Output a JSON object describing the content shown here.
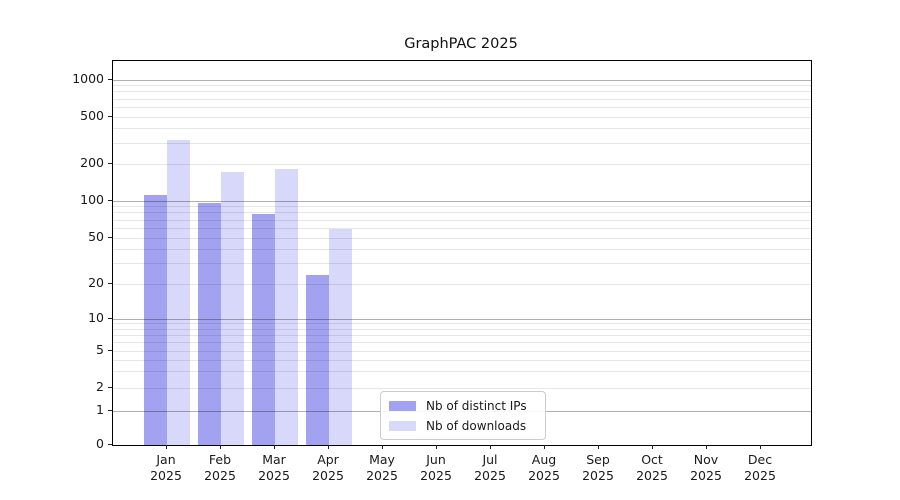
{
  "figure": {
    "title": "GraphPAC 2025"
  },
  "chart_data": {
    "type": "bar",
    "title": "GraphPAC 2025",
    "categories": [
      "Jan 2025",
      "Feb 2025",
      "Mar 2025",
      "Apr 2025",
      "May 2025",
      "Jun 2025",
      "Jul 2025",
      "Aug 2025",
      "Sep 2025",
      "Oct 2025",
      "Nov 2025",
      "Dec 2025"
    ],
    "series": [
      {
        "name": "Nb of distinct IPs",
        "color": "#a2a2f0",
        "values": [
          112,
          97,
          78,
          24,
          0,
          0,
          0,
          0,
          0,
          0,
          0,
          0
        ]
      },
      {
        "name": "Nb of downloads",
        "color": "#d8d8fa",
        "values": [
          320,
          172,
          183,
          59,
          0,
          0,
          0,
          0,
          0,
          0,
          0,
          0
        ]
      }
    ],
    "xlabel": "",
    "ylabel": "",
    "yscale": "symlog",
    "yticks": [
      0,
      1,
      2,
      5,
      10,
      20,
      50,
      100,
      200,
      500,
      1000
    ],
    "ylim": [
      0,
      1450
    ],
    "grid": "horizontal, major and minor log gridlines",
    "legend_position": "lower-center inside axes"
  }
}
